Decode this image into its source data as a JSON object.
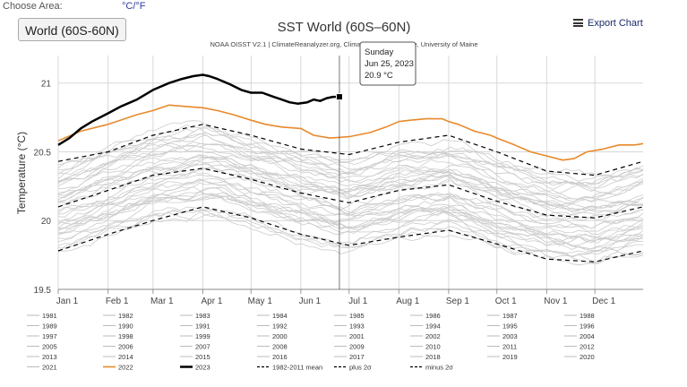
{
  "header": {
    "choose_area_label": "Choose Area:",
    "unit_toggle": "°C/°F",
    "area_button": "World (60S-60N)",
    "export_label": "Export Chart",
    "export_icon": "menu-icon"
  },
  "chart_data": {
    "type": "line",
    "title": "SST World (60S–60N)",
    "subtitle": "NOAA OISST V2.1 | ClimateReanalyzer.org, Climate Change Institute, University of Maine",
    "ylabel": "Temperature (°C)",
    "xlabel": "",
    "ylim": [
      19.5,
      21.2
    ],
    "yticks": [
      19.5,
      20,
      20.5,
      21
    ],
    "x_unit": "day of year",
    "xlim": [
      1,
      365
    ],
    "xticks": [
      {
        "label": "Jan 1",
        "day": 1
      },
      {
        "label": "Feb 1",
        "day": 32
      },
      {
        "label": "Mar 1",
        "day": 60
      },
      {
        "label": "Apr 1",
        "day": 91
      },
      {
        "label": "May 1",
        "day": 121
      },
      {
        "label": "Jun 1",
        "day": 152
      },
      {
        "label": "Jul 1",
        "day": 182
      },
      {
        "label": "Aug 1",
        "day": 213
      },
      {
        "label": "Sep 1",
        "day": 244
      },
      {
        "label": "Oct 1",
        "day": 274
      },
      {
        "label": "Nov 1",
        "day": 305
      },
      {
        "label": "Dec 1",
        "day": 335
      }
    ],
    "grid": true,
    "colors": {
      "gray": "#cccccc",
      "orange": "#e8892b",
      "black": "#000000",
      "grid": "#d8d8d8"
    },
    "series": [
      {
        "name": "2023",
        "color": "#000000",
        "width": 2.5,
        "x": [
          1,
          8,
          15,
          22,
          32,
          40,
          50,
          60,
          70,
          78,
          85,
          91,
          95,
          100,
          108,
          115,
          121,
          128,
          135,
          140,
          145,
          150,
          156,
          160,
          164,
          168,
          172,
          176
        ],
        "values": [
          20.55,
          20.6,
          20.67,
          20.72,
          20.78,
          20.83,
          20.88,
          20.95,
          21.0,
          21.03,
          21.05,
          21.06,
          21.05,
          21.03,
          20.99,
          20.95,
          20.93,
          20.93,
          20.9,
          20.88,
          20.86,
          20.85,
          20.86,
          20.88,
          20.87,
          20.89,
          20.9,
          20.9
        ]
      },
      {
        "name": "2022",
        "color": "#e8892b",
        "width": 1.6,
        "x": [
          1,
          15,
          32,
          50,
          60,
          70,
          80,
          91,
          100,
          110,
          121,
          130,
          140,
          152,
          160,
          170,
          182,
          195,
          205,
          213,
          220,
          230,
          240,
          244,
          250,
          260,
          270,
          274,
          285,
          295,
          305,
          315,
          322,
          330,
          340,
          350,
          360,
          365
        ],
        "values": [
          20.58,
          20.65,
          20.7,
          20.77,
          20.8,
          20.84,
          20.83,
          20.82,
          20.8,
          20.77,
          20.73,
          20.7,
          20.68,
          20.67,
          20.62,
          20.6,
          20.61,
          20.64,
          20.68,
          20.72,
          20.73,
          20.74,
          20.74,
          20.72,
          20.7,
          20.65,
          20.62,
          20.6,
          20.55,
          20.5,
          20.47,
          20.44,
          20.45,
          20.5,
          20.52,
          20.55,
          20.55,
          20.56
        ]
      },
      {
        "name": "1982-2011 mean",
        "color": "#000000",
        "width": 1.2,
        "dash": "5,4",
        "x": [
          1,
          32,
          60,
          91,
          121,
          152,
          182,
          213,
          244,
          274,
          305,
          335,
          365
        ],
        "values": [
          20.1,
          20.22,
          20.33,
          20.38,
          20.3,
          20.2,
          20.13,
          20.22,
          20.26,
          20.14,
          20.04,
          20.02,
          20.1
        ]
      },
      {
        "name": "plus 2σ",
        "color": "#000000",
        "width": 1.2,
        "dash": "5,4",
        "x": [
          1,
          32,
          60,
          91,
          121,
          152,
          182,
          213,
          244,
          274,
          305,
          335,
          365
        ],
        "values": [
          20.43,
          20.5,
          20.62,
          20.7,
          20.62,
          20.52,
          20.48,
          20.57,
          20.62,
          20.5,
          20.36,
          20.33,
          20.43
        ]
      },
      {
        "name": "minus 2σ",
        "color": "#000000",
        "width": 1.2,
        "dash": "5,4",
        "x": [
          1,
          32,
          60,
          91,
          121,
          152,
          182,
          213,
          244,
          274,
          305,
          335,
          365
        ],
        "values": [
          19.78,
          19.9,
          20.0,
          20.1,
          20.02,
          19.9,
          19.82,
          19.88,
          19.93,
          19.83,
          19.72,
          19.7,
          19.78
        ]
      }
    ],
    "tooltip": {
      "line1": "Sunday",
      "line2": "Jun 25, 2023",
      "line3": "20.9 °C",
      "day": 176,
      "value": 20.9
    },
    "legend": {
      "items": [
        "1981",
        "1982",
        "1983",
        "1984",
        "1985",
        "1986",
        "1987",
        "1988",
        "1989",
        "1990",
        "1991",
        "1992",
        "1993",
        "1994",
        "1995",
        "1996",
        "1997",
        "1998",
        "1999",
        "2000",
        "2001",
        "2002",
        "2003",
        "2004",
        "2005",
        "2006",
        "2007",
        "2008",
        "2009",
        "2010",
        "2011",
        "2012",
        "2013",
        "2014",
        "2015",
        "2016",
        "2017",
        "2018",
        "2019",
        "2020",
        "2021",
        "2022",
        "2023",
        "1982-2011 mean",
        "plus 2σ",
        "minus 2σ"
      ],
      "styles": {
        "2022": "orange",
        "2023": "black-bold",
        "1982-2011 mean": "dashed",
        "plus 2σ": "dashed",
        "minus 2σ": "dashed"
      }
    }
  }
}
